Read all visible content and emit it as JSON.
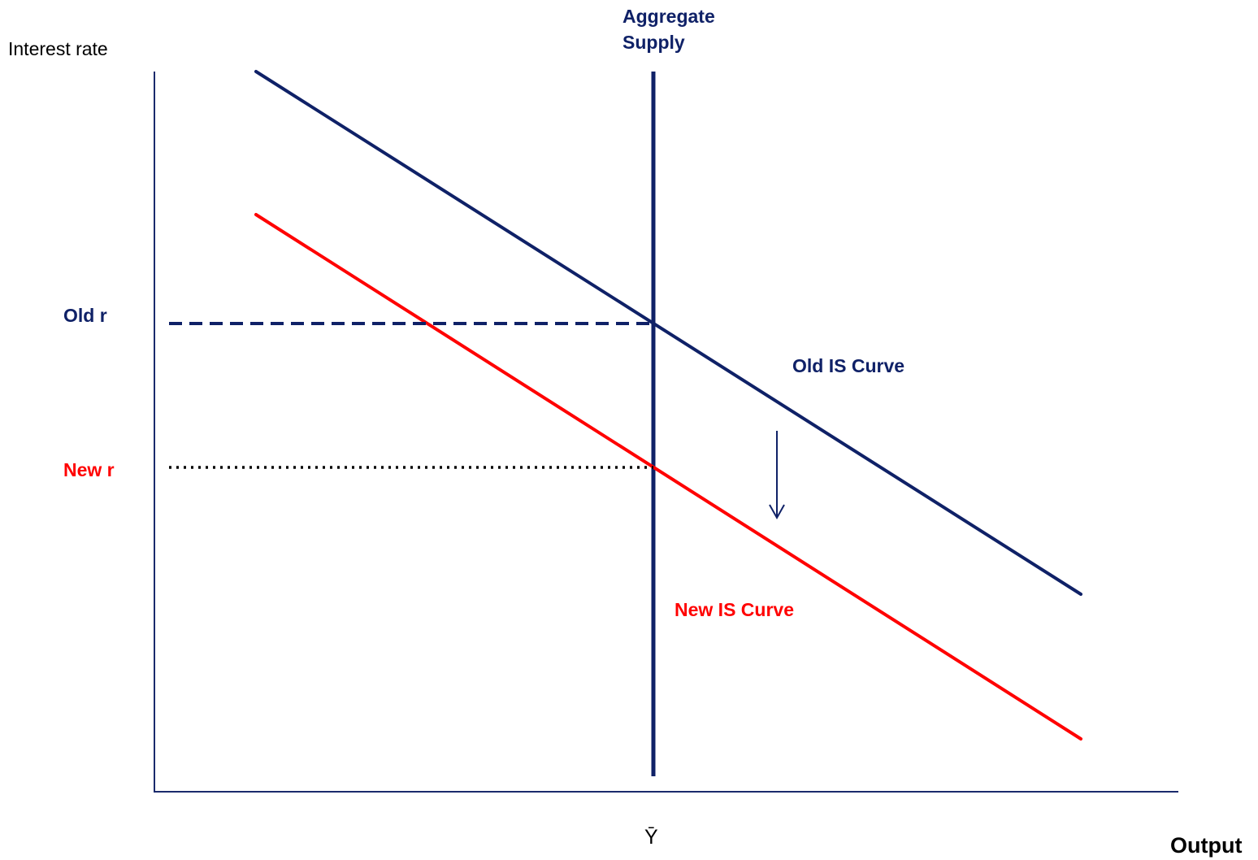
{
  "labels": {
    "y_axis": "Interest rate",
    "x_axis": "Output",
    "aggregate_supply_line1": "Aggregate",
    "aggregate_supply_line2": "Supply",
    "old_r": "Old r",
    "new_r": "New r",
    "old_is": "Old IS Curve",
    "new_is": "New IS Curve",
    "y_bar": "Ȳ"
  },
  "colors": {
    "navy": "#0f2167",
    "red": "#ff0000",
    "black": "#000000"
  }
}
